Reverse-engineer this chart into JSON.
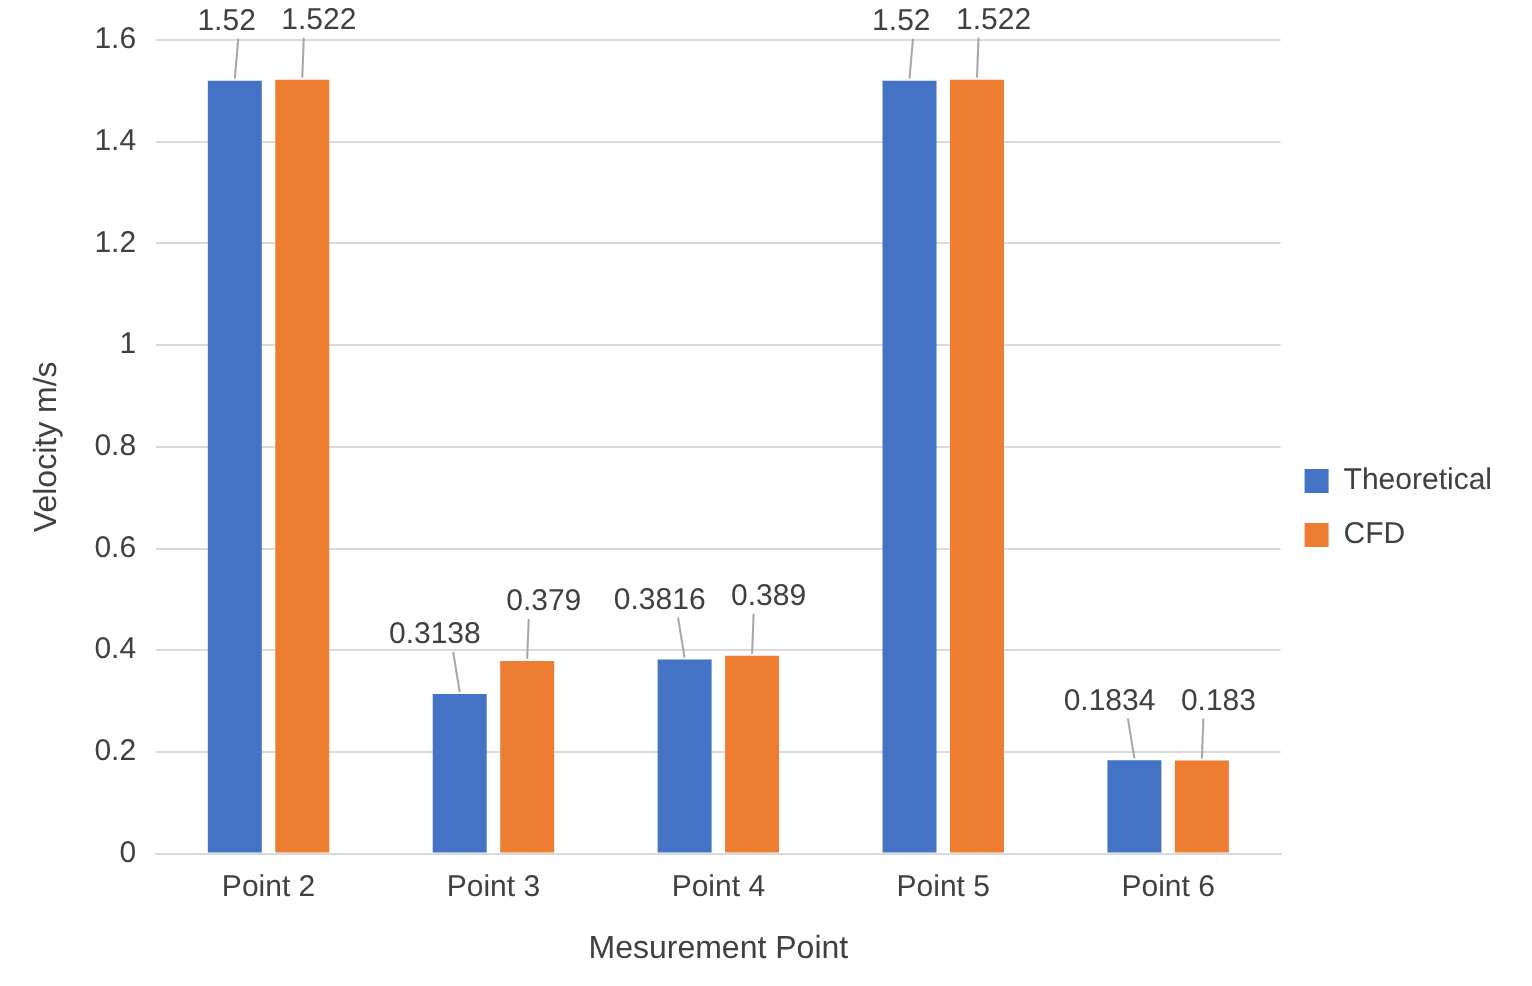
{
  "chart_data": {
    "type": "bar",
    "xlabel": "Mesurement Point",
    "ylabel": "Velocity m/s",
    "categories": [
      "Point 2",
      "Point 3",
      "Point 4",
      "Point 5",
      "Point 6"
    ],
    "series": [
      {
        "name": "Theoretical",
        "color": "#4472c4",
        "values": [
          1.52,
          0.3138,
          0.3816,
          1.52,
          0.1834
        ]
      },
      {
        "name": "CFD",
        "color": "#ed7d31",
        "values": [
          1.522,
          0.379,
          0.389,
          1.522,
          0.183
        ]
      }
    ],
    "ylim": [
      0,
      1.6
    ],
    "yticks": [
      0,
      0.2,
      0.4,
      0.6,
      0.8,
      1,
      1.2,
      1.4,
      1.6
    ],
    "grid": "y",
    "legend": "right",
    "data_labels": true
  }
}
